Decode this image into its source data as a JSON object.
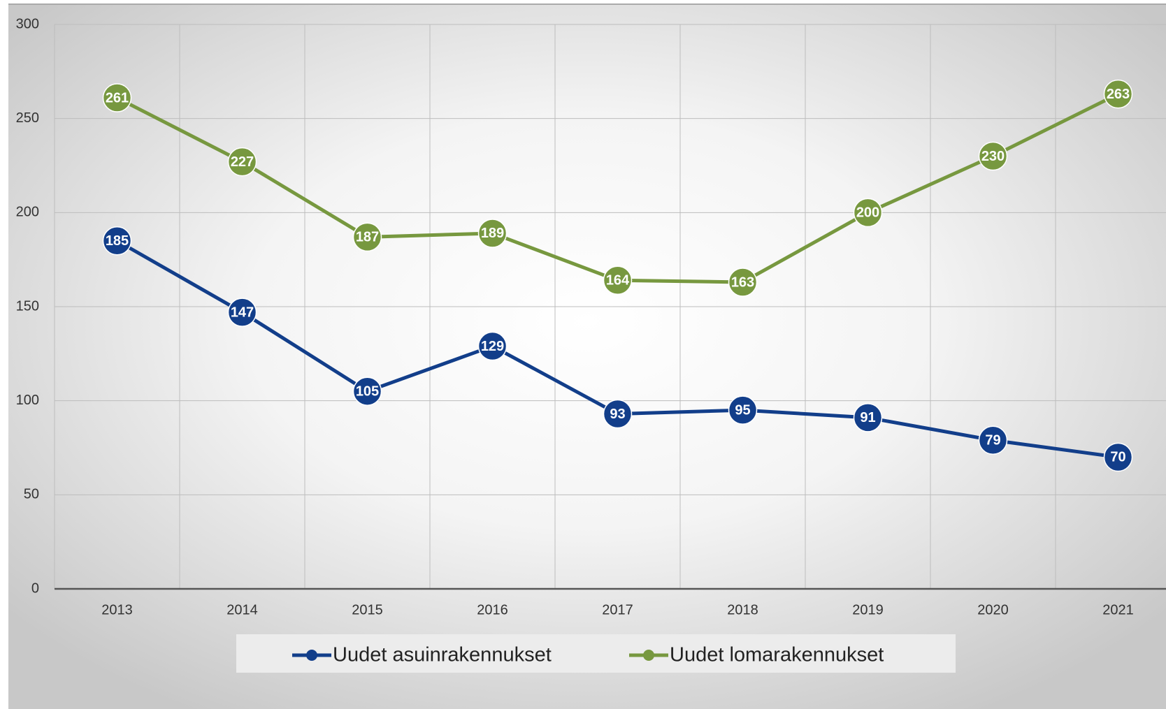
{
  "chart_data": {
    "type": "line",
    "categories": [
      "2013",
      "2014",
      "2015",
      "2016",
      "2017",
      "2018",
      "2019",
      "2020",
      "2021"
    ],
    "series": [
      {
        "name": "Uudet asuinrakennukset",
        "color": "#123e8a",
        "values": [
          185,
          147,
          105,
          129,
          93,
          95,
          91,
          79,
          70
        ]
      },
      {
        "name": "Uudet lomarakennukset",
        "color": "#77983f",
        "values": [
          261,
          227,
          187,
          189,
          164,
          163,
          200,
          230,
          263
        ]
      }
    ],
    "ylim": [
      0,
      300
    ],
    "yticks": [
      0,
      50,
      100,
      150,
      200,
      250,
      300
    ],
    "grid": true,
    "legend": "bottom"
  }
}
